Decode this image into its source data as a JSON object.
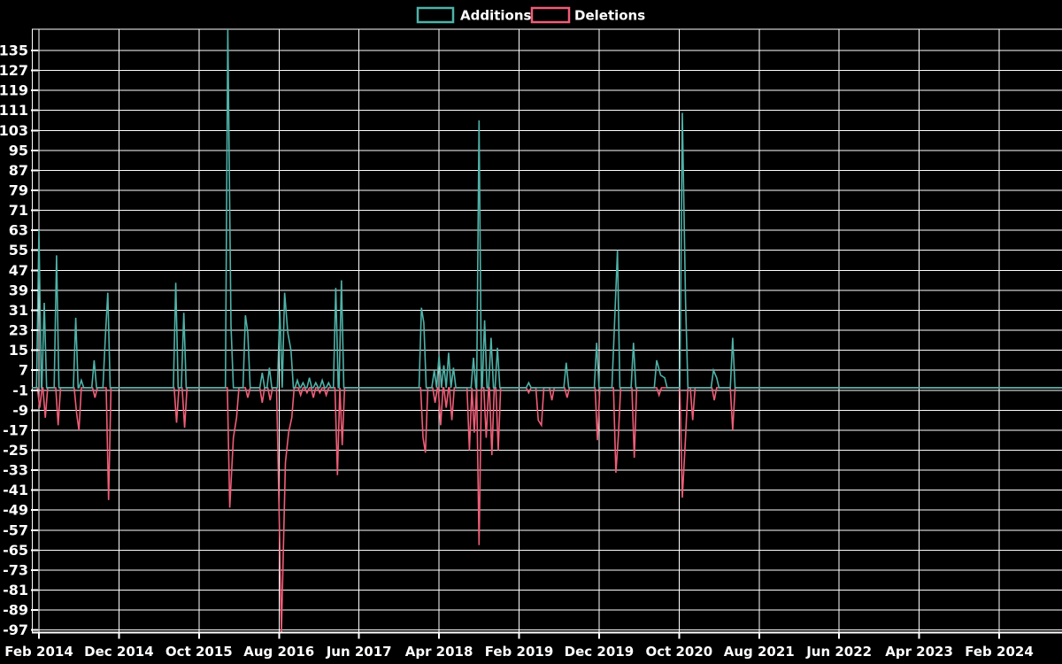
{
  "chart_title": "",
  "chart_data": {
    "type": "line",
    "description": "Code additions and deletions per week over time (spiky line chart, black background)",
    "legend": {
      "position": "top-center",
      "entries": [
        "Additions",
        "Deletions"
      ]
    },
    "colors": {
      "additions": "#4eb2a8",
      "deletions": "#ef5d77",
      "grid": "#ffffff",
      "background": "#000000",
      "text": "#ffffff"
    },
    "x_axis": {
      "unit": "months since Feb 2014",
      "tick_labels": [
        "Feb 2014",
        "Dec 2014",
        "Oct 2015",
        "Aug 2016",
        "Jun 2017",
        "Apr 2018",
        "Feb 2019",
        "Dec 2019",
        "Oct 2020",
        "Aug 2021",
        "Jun 2022",
        "Apr 2023",
        "Feb 2024"
      ],
      "tick_month_offsets": [
        0,
        10,
        20,
        30,
        40,
        50,
        60,
        70,
        80,
        90,
        100,
        110,
        120
      ],
      "data_start_month": -0.885,
      "data_end_month": 127.85
    },
    "y_axis": {
      "tick_labels": [
        "135",
        "127",
        "119",
        "111",
        "103",
        "95",
        "87",
        "79",
        "71",
        "63",
        "55",
        "47",
        "39",
        "31",
        "23",
        "15",
        "7",
        "-1",
        "-9",
        "-17",
        "-25",
        "-33",
        "-41",
        "-49",
        "-57",
        "-65",
        "-73",
        "-81",
        "-89",
        "-97"
      ],
      "tick_values": [
        135,
        127,
        119,
        111,
        103,
        95,
        87,
        79,
        71,
        63,
        55,
        47,
        39,
        31,
        23,
        15,
        7,
        -1,
        -9,
        -17,
        -25,
        -33,
        -41,
        -49,
        -57,
        -65,
        -73,
        -81,
        -89,
        -97
      ],
      "top_value": 143.5,
      "bottom_value": -98,
      "grid": true
    },
    "series": [
      {
        "name": "Additions",
        "color": "#4eb2a8",
        "baseline": 0,
        "spikes": [
          [
            0,
            63
          ],
          [
            0.66,
            34
          ],
          [
            2.2,
            53
          ],
          [
            4.6,
            28
          ],
          [
            5.3,
            3
          ],
          [
            6.9,
            11
          ],
          [
            8.3,
            20
          ],
          [
            8.6,
            38
          ],
          [
            17.1,
            42
          ],
          [
            18.1,
            30
          ],
          [
            23.6,
            143.5
          ],
          [
            24.0,
            25
          ],
          [
            25.8,
            29
          ],
          [
            26.1,
            22
          ],
          [
            27.9,
            6
          ],
          [
            28.8,
            8
          ],
          [
            30.1,
            31
          ],
          [
            30.7,
            38
          ],
          [
            31.1,
            22
          ],
          [
            31.5,
            15
          ],
          [
            32.3,
            3
          ],
          [
            33.0,
            2
          ],
          [
            33.8,
            4
          ],
          [
            34.6,
            2
          ],
          [
            35.4,
            3
          ],
          [
            36.2,
            2
          ],
          [
            37.1,
            40
          ],
          [
            37.8,
            43
          ],
          [
            47.8,
            32
          ],
          [
            48.1,
            26
          ],
          [
            49.4,
            7
          ],
          [
            50.0,
            13
          ],
          [
            50.6,
            9
          ],
          [
            51.2,
            14
          ],
          [
            51.8,
            8
          ],
          [
            54.3,
            12
          ],
          [
            55.0,
            107
          ],
          [
            55.7,
            27
          ],
          [
            56.5,
            20
          ],
          [
            57.3,
            16
          ],
          [
            61.2,
            2
          ],
          [
            65.9,
            10
          ],
          [
            69.7,
            18
          ],
          [
            71.9,
            23
          ],
          [
            72.3,
            55
          ],
          [
            74.3,
            18
          ],
          [
            77.2,
            11
          ],
          [
            77.7,
            5
          ],
          [
            78.2,
            4
          ],
          [
            80.4,
            110
          ],
          [
            80.8,
            35
          ],
          [
            84.3,
            7
          ],
          [
            84.7,
            4
          ],
          [
            86.7,
            20
          ]
        ]
      },
      {
        "name": "Deletions",
        "color": "#ef5d77",
        "baseline": 0,
        "spikes": [
          [
            0.1,
            -8
          ],
          [
            0.8,
            -12
          ],
          [
            2.4,
            -15
          ],
          [
            4.7,
            -10
          ],
          [
            5.0,
            -17
          ],
          [
            7.0,
            -4
          ],
          [
            8.7,
            -45
          ],
          [
            17.2,
            -14
          ],
          [
            18.2,
            -16
          ],
          [
            23.85,
            -48
          ],
          [
            24.3,
            -20
          ],
          [
            24.7,
            -12
          ],
          [
            26.1,
            -4
          ],
          [
            27.9,
            -6
          ],
          [
            28.9,
            -5
          ],
          [
            30.0,
            -48
          ],
          [
            30.3,
            -98
          ],
          [
            30.8,
            -30
          ],
          [
            31.2,
            -18
          ],
          [
            31.6,
            -12
          ],
          [
            32.7,
            -3
          ],
          [
            33.5,
            -2
          ],
          [
            34.3,
            -4
          ],
          [
            35.1,
            -2
          ],
          [
            35.9,
            -3
          ],
          [
            37.3,
            -35
          ],
          [
            37.9,
            -23
          ],
          [
            48.0,
            -20
          ],
          [
            48.3,
            -26
          ],
          [
            49.5,
            -6
          ],
          [
            50.2,
            -15
          ],
          [
            50.9,
            -8
          ],
          [
            51.6,
            -13
          ],
          [
            53.8,
            -25
          ],
          [
            54.4,
            -18
          ],
          [
            55.0,
            -63
          ],
          [
            55.9,
            -20
          ],
          [
            56.6,
            -27
          ],
          [
            57.4,
            -25
          ],
          [
            61.2,
            -2
          ],
          [
            62.4,
            -13
          ],
          [
            62.8,
            -15
          ],
          [
            64.1,
            -5
          ],
          [
            66.0,
            -4
          ],
          [
            69.8,
            -21
          ],
          [
            72.1,
            -34
          ],
          [
            72.4,
            -20
          ],
          [
            74.4,
            -28
          ],
          [
            77.5,
            -3
          ],
          [
            80.4,
            -44
          ],
          [
            80.8,
            -20
          ],
          [
            81.7,
            -13
          ],
          [
            84.4,
            -5
          ],
          [
            86.7,
            -17
          ]
        ]
      }
    ]
  }
}
